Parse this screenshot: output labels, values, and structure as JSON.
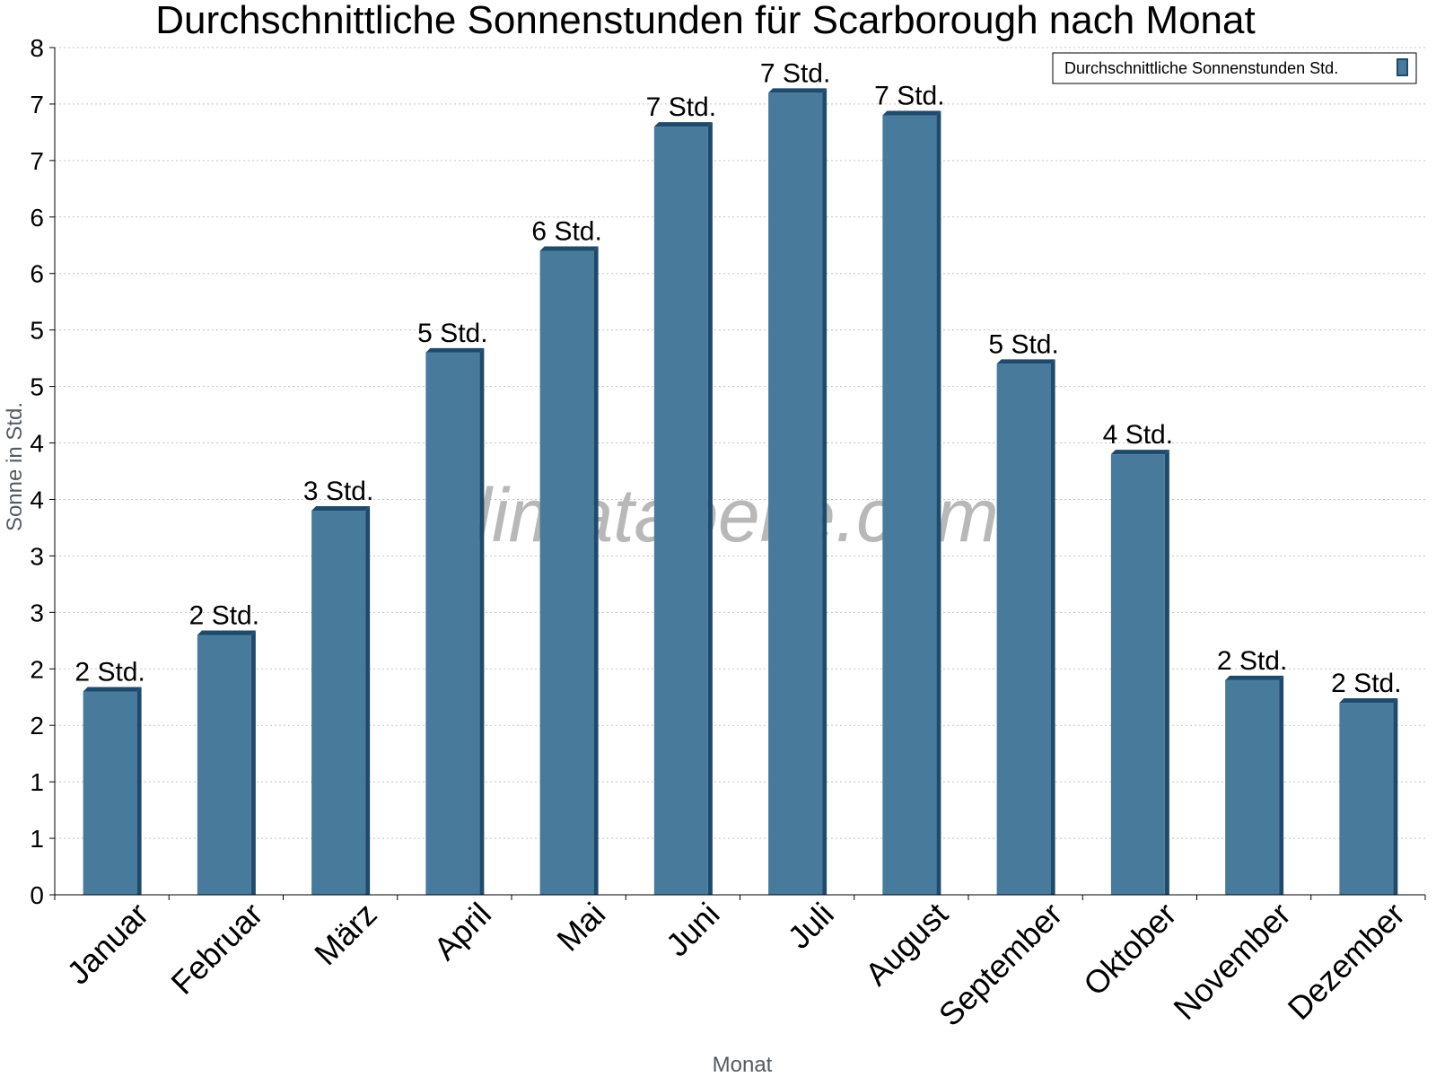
{
  "chart_data": {
    "type": "bar",
    "title": "Durchschnittliche Sonnenstunden für Scarborough nach Monat",
    "xlabel": "Monat",
    "ylabel": "Sonne in Std.",
    "ylim": [
      0,
      7.5
    ],
    "yticks": [
      0,
      0.5,
      1,
      1.5,
      2,
      2.5,
      3,
      3.5,
      4,
      4.5,
      5,
      5.5,
      6,
      6.5,
      7,
      7.5
    ],
    "ytick_labels": [
      "0",
      "1",
      "1",
      "2",
      "2",
      "3",
      "3",
      "4",
      "4",
      "5",
      "5",
      "6",
      "6",
      "7",
      "7",
      "8"
    ],
    "categories": [
      "Januar",
      "Februar",
      "März",
      "April",
      "Mai",
      "Juni",
      "Juli",
      "August",
      "September",
      "Oktober",
      "November",
      "Dezember"
    ],
    "series": [
      {
        "name": "Durchschnittliche Sonnenstunden Std.",
        "values": [
          1.8,
          2.3,
          3.4,
          4.8,
          5.7,
          6.8,
          7.1,
          6.9,
          4.7,
          3.9,
          1.9,
          1.7
        ],
        "labels": [
          "2 Std.",
          "2 Std.",
          "3 Std.",
          "5 Std.",
          "6 Std.",
          "7 Std.",
          "7 Std.",
          "7 Std.",
          "5 Std.",
          "4 Std.",
          "2 Std.",
          "2 Std."
        ],
        "color": "#487a9c",
        "edge_color": "#1e4a6c"
      }
    ],
    "grid": true,
    "legend_position": "top-right",
    "watermark": "klimatabelle.com"
  }
}
